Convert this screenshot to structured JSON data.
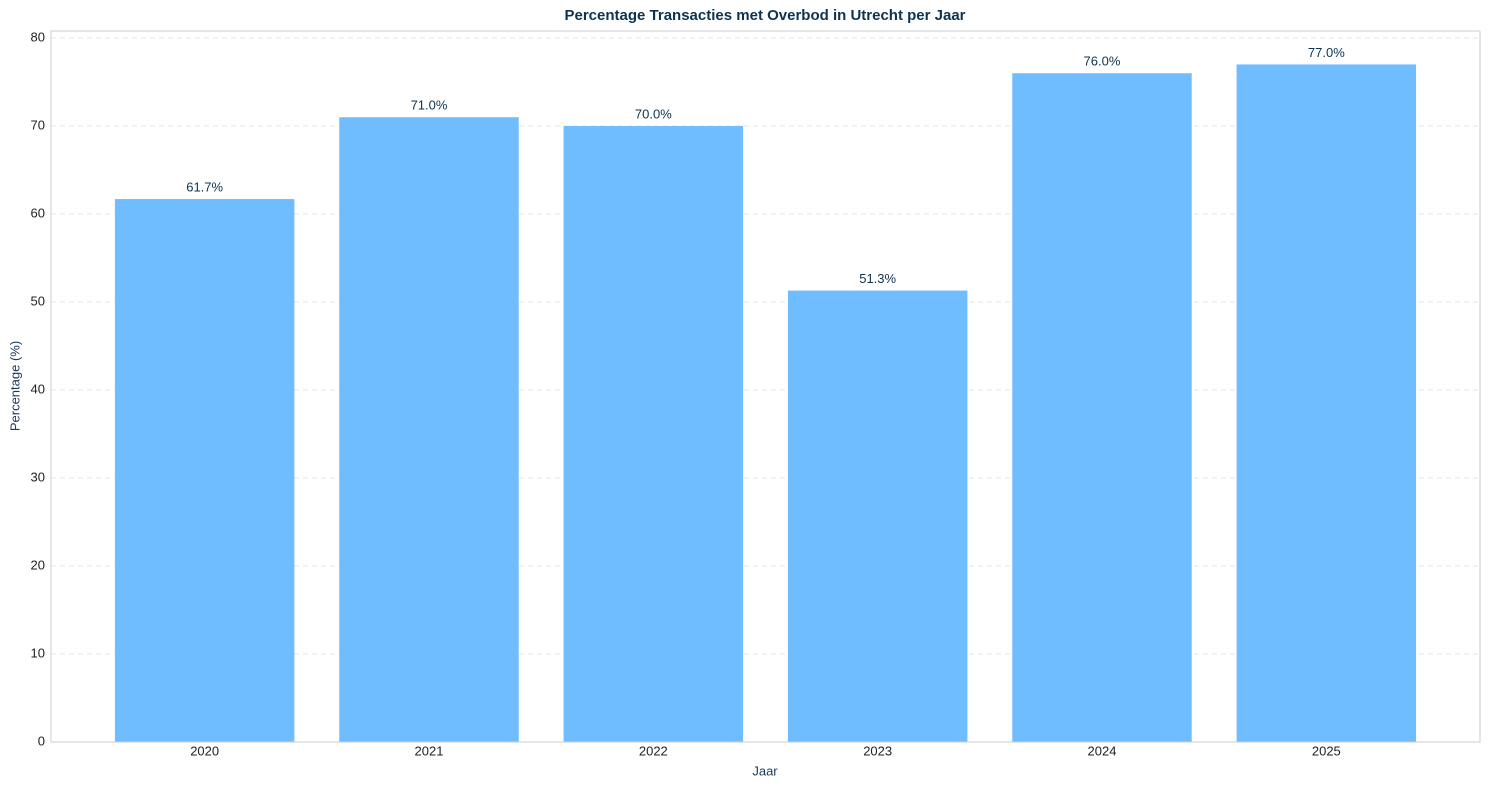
{
  "chart_data": {
    "type": "bar",
    "title": "Percentage Transacties met Overbod in Utrecht per Jaar",
    "x_label": "Jaar",
    "y_label": "Percentage (%)",
    "categories": [
      "2020",
      "2021",
      "2022",
      "2023",
      "2024",
      "2025"
    ],
    "values": [
      61.7,
      71.0,
      70.0,
      51.3,
      76.0,
      77.0
    ],
    "value_labels": [
      "61.7%",
      "71.0%",
      "70.0%",
      "51.3%",
      "76.0%",
      "77.0%"
    ],
    "color": "#6fbcff",
    "ylim": [
      0,
      80.8
    ],
    "yticks": [
      0,
      10,
      20,
      30,
      40,
      50,
      60,
      70,
      80
    ],
    "grid": true
  }
}
